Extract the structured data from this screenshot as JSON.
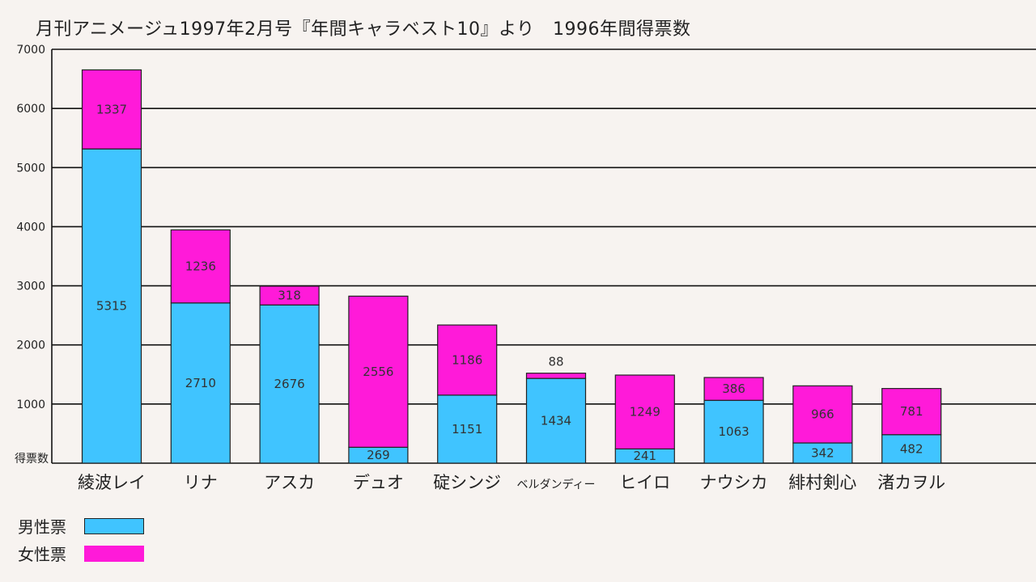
{
  "chart_data": {
    "type": "bar",
    "stacked": true,
    "title": "月刊アニメージュ1997年2月号『年間キャラベスト10』より　1996年間得票数",
    "ylabel": "得票数",
    "ylim": [
      0,
      7000
    ],
    "yticks": [
      1000,
      2000,
      3000,
      4000,
      5000,
      6000,
      7000
    ],
    "grid": true,
    "legend_position": "bottom-left",
    "categories": [
      "綾波レイ",
      "リナ",
      "アスカ",
      "デュオ",
      "碇シンジ",
      "ベルダンディー",
      "ヒイロ",
      "ナウシカ",
      "緋村剣心",
      "渚カヲル"
    ],
    "series": [
      {
        "name": "男性票",
        "color": "#40c4ff",
        "values": [
          5315,
          2710,
          2676,
          269,
          1151,
          1434,
          241,
          1063,
          342,
          482
        ]
      },
      {
        "name": "女性票",
        "color": "#ff1ad9",
        "values": [
          1337,
          1236,
          318,
          2556,
          1186,
          88,
          1249,
          386,
          966,
          781
        ]
      }
    ]
  }
}
